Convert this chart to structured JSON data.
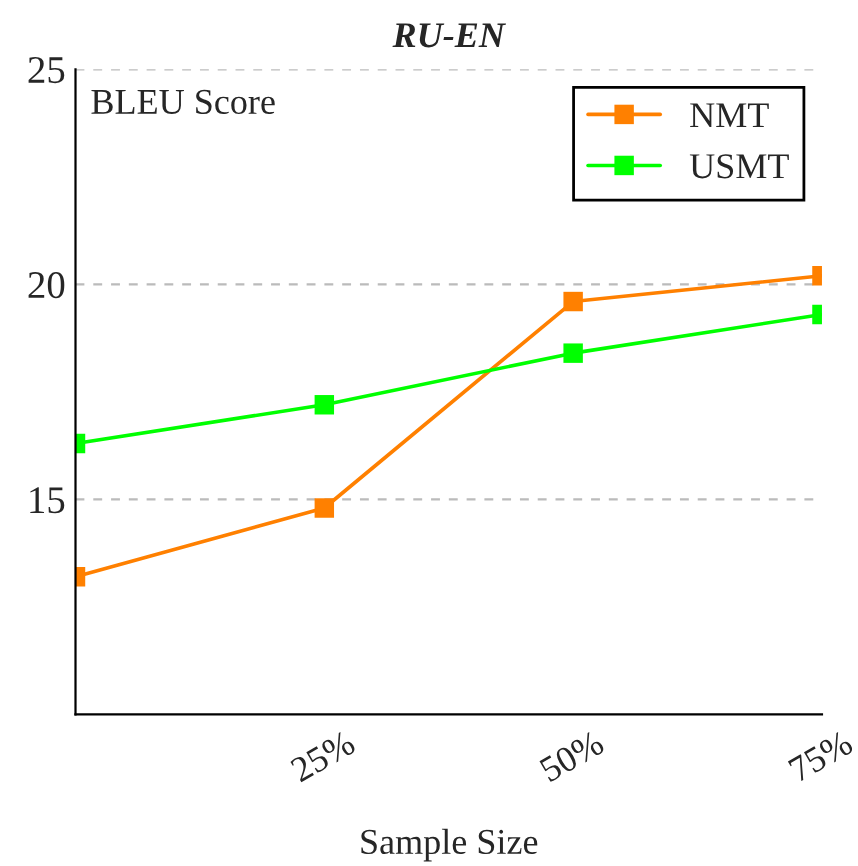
{
  "chart_data": {
    "type": "line",
    "title": "RU-EN",
    "xlabel": "Sample Size",
    "ylabel": "BLEU Score",
    "x": [
      0,
      25,
      50,
      75
    ],
    "series": [
      {
        "name": "NMT",
        "color": "#ff8000",
        "values": [
          13.2,
          14.8,
          19.6,
          20.2
        ]
      },
      {
        "name": "USMT",
        "color": "#00ff00",
        "values": [
          16.3,
          17.2,
          18.4,
          19.3
        ]
      }
    ],
    "xlim": [
      0,
      75
    ],
    "ylim": [
      10,
      25
    ],
    "xticks": [
      {
        "value": 25,
        "label": "25%"
      },
      {
        "value": 50,
        "label": "50%"
      },
      {
        "value": 75,
        "label": "75%"
      }
    ],
    "yticks": [
      15,
      20,
      25
    ],
    "grid": "y",
    "legend": "top right",
    "marker": "square",
    "line_style": "solid"
  }
}
